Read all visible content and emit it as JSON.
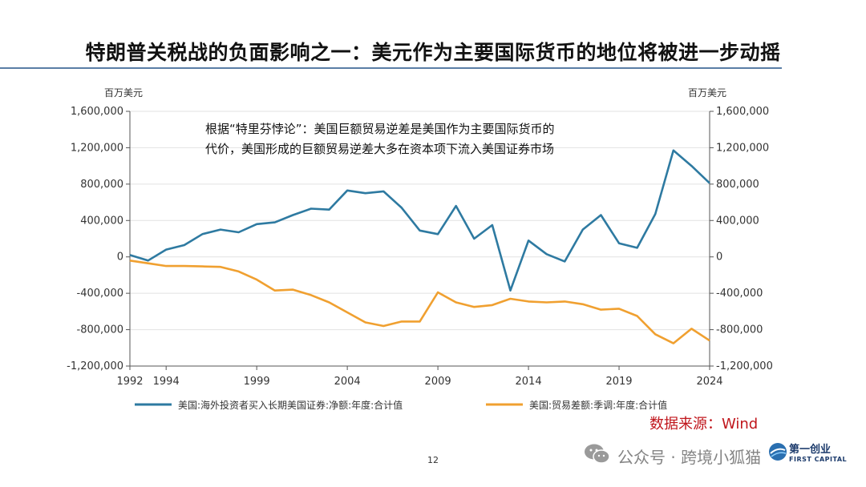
{
  "slide": {
    "title": "特朗普关税战的负面影响之一：美元作为主要国际货币的地位将被进一步动摇",
    "source_note": "数据来源：Wind",
    "page_number": "12",
    "watermark": "公众号 · 跨境小狐猫",
    "logo_main": "第一创业",
    "logo_sub": "FIRST CAPITAL"
  },
  "chart_data": {
    "type": "line",
    "annotation_line1": "根据“特里芬悖论”：美国巨额贸易逆差是美国作为主要国际货币的",
    "annotation_line2": "代价，美国形成的巨额贸易逆差大多在资本项下流入美国证券市场",
    "left_unit": "百万美元",
    "right_unit": "百万美元",
    "ylim": [
      -1200000,
      1600000
    ],
    "yticks": [
      1600000,
      1200000,
      800000,
      400000,
      0,
      -400000,
      -800000,
      -1200000
    ],
    "ytick_labels": [
      "1,600,000",
      "1,200,000",
      "800,000",
      "400,000",
      "0",
      "-400,000",
      "-800,000",
      "-1,200,000"
    ],
    "xlim": [
      1992,
      2024
    ],
    "xticks": [
      1992,
      1994,
      1999,
      2004,
      2009,
      2014,
      2019,
      2024
    ],
    "xtick_labels": [
      "1992",
      "1994",
      "1999",
      "2004",
      "2009",
      "2014",
      "2019",
      "2024"
    ],
    "x": [
      1992,
      1993,
      1994,
      1995,
      1996,
      1997,
      1998,
      1999,
      2000,
      2001,
      2002,
      2003,
      2004,
      2005,
      2006,
      2007,
      2008,
      2009,
      2010,
      2011,
      2012,
      2013,
      2014,
      2015,
      2016,
      2017,
      2018,
      2019,
      2020,
      2021,
      2022,
      2023,
      2024
    ],
    "series": [
      {
        "name": "美国:海外投资者买入长期美国证券:净额:年度:合计值",
        "color": "#2e7aa1",
        "values": [
          20000,
          -40000,
          80000,
          130000,
          250000,
          300000,
          270000,
          360000,
          380000,
          460000,
          530000,
          520000,
          730000,
          700000,
          720000,
          540000,
          290000,
          250000,
          560000,
          200000,
          350000,
          -370000,
          180000,
          30000,
          -50000,
          300000,
          460000,
          150000,
          100000,
          470000,
          1170000,
          1000000,
          810000
        ]
      },
      {
        "name": "美国:贸易差额:季调:年度:合计值",
        "color": "#f0a030",
        "values": [
          -40000,
          -70000,
          -100000,
          -100000,
          -105000,
          -110000,
          -160000,
          -250000,
          -370000,
          -360000,
          -420000,
          -500000,
          -610000,
          -720000,
          -760000,
          -710000,
          -710000,
          -390000,
          -500000,
          -550000,
          -530000,
          -460000,
          -490000,
          -500000,
          -490000,
          -520000,
          -580000,
          -570000,
          -650000,
          -850000,
          -950000,
          -790000,
          -920000
        ]
      }
    ]
  }
}
